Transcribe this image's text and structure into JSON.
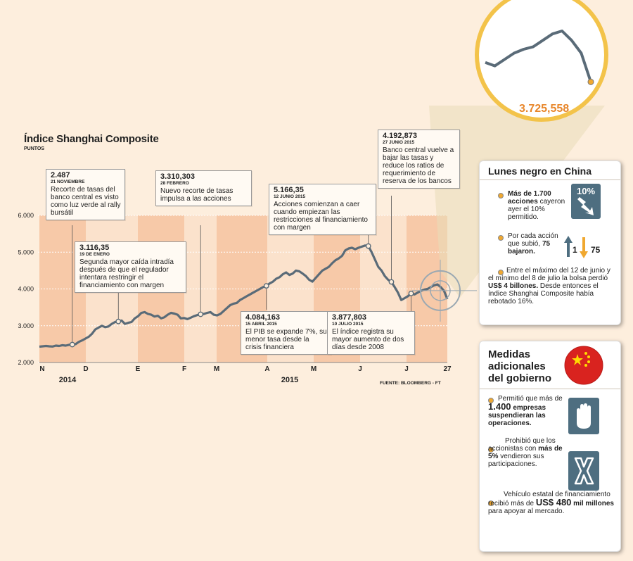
{
  "header": {
    "title": "Índice Shanghai Composite",
    "subtitle": "PUNTOS"
  },
  "chart_data": {
    "type": "line",
    "title": "Índice Shanghai Composite",
    "ylabel": "PUNTOS",
    "ylim": [
      2000,
      6000
    ],
    "yticks": [
      2000,
      3000,
      4000,
      5000,
      6000
    ],
    "ytick_labels": [
      "2.000",
      "3.000",
      "4.000",
      "5.000",
      "6.000"
    ],
    "month_labels": [
      "N",
      "D",
      "E",
      "F",
      "M",
      "A",
      "M",
      "J",
      "J",
      "27"
    ],
    "year_labels": [
      "2014",
      "2015"
    ],
    "series": [
      {
        "values": [
          2430,
          2440,
          2450,
          2440,
          2435,
          2460,
          2450,
          2470,
          2460,
          2480,
          2487,
          2500,
          2560,
          2600,
          2650,
          2700,
          2780,
          2900,
          2950,
          3000,
          2960,
          2980,
          3050,
          3100,
          3116,
          3140,
          3050,
          3080,
          3100,
          3200,
          3260,
          3350,
          3370,
          3320,
          3300,
          3250,
          3270,
          3200,
          3230,
          3300,
          3350,
          3330,
          3300,
          3200,
          3210,
          3180,
          3220,
          3260,
          3290,
          3310,
          3320,
          3350,
          3370,
          3300,
          3280,
          3320,
          3400,
          3480,
          3560,
          3600,
          3620,
          3700,
          3750,
          3800,
          3850,
          3900,
          3950,
          4000,
          4050,
          4084,
          4150,
          4200,
          4280,
          4320,
          4400,
          4450,
          4380,
          4420,
          4500,
          4480,
          4420,
          4350,
          4250,
          4200,
          4300,
          4400,
          4500,
          4550,
          4600,
          4700,
          4780,
          4830,
          4900,
          5050,
          5100,
          5120,
          5080,
          5120,
          5150,
          5180,
          5166,
          5000,
          4800,
          4600,
          4500,
          4350,
          4250,
          4192,
          4050,
          3900,
          3700,
          3750,
          3800,
          3877,
          3850,
          3900,
          3950,
          3980,
          4000,
          4050,
          4100,
          4123,
          4050,
          3950,
          3725
        ]
      }
    ],
    "annotations": [
      {
        "value": "2.487",
        "date": "21 NOVIEMBRE",
        "text": "Recorte de tasas del banco central es visto como luz verde al rally bursátil"
      },
      {
        "value": "3.116,35",
        "date": "19 DE ENERO",
        "text": "Segunda mayor caída intradía después de que el regulador intentara restringir el financiamiento con margen"
      },
      {
        "value": "3.310,303",
        "date": "28 FEBRERO",
        "text": "Nuevo recorte de tasas impulsa a las acciones"
      },
      {
        "value": "4.084,163",
        "date": "15 ABRIL 2015",
        "text": "El PIB se expande 7%, su menor tasa desde la crisis financiera"
      },
      {
        "value": "5.166,35",
        "date": "12 JUNIO 2015",
        "text": "Acciones comienzan a caer cuando empiezan las restricciones al financiamiento con margen"
      },
      {
        "value": "4.192,873",
        "date": "27 JUNIO 2015",
        "text": "Banco central vuelve a bajar las tasas y reduce los ratios de requerimiento de reserva de los bancos"
      },
      {
        "value": "3.877,803",
        "date": "10 JULIO 2015",
        "text": "El índice registra su mayor aumento de dos días desde 2008"
      }
    ],
    "zoom_value": "3.725,558",
    "source": "FUENTE: BLOOMBERG - FT"
  },
  "panel1": {
    "title": "Lunes negro en China",
    "item1": {
      "bold": "Más de 1.700 acciones",
      "rest": " cayeron ayer el 10% permitido."
    },
    "icon1_label": "10%",
    "item2": {
      "text": "Por cada acción que subió, ",
      "bold": "75 bajaron."
    },
    "up_count": "1",
    "down_count": "75",
    "item3": {
      "text1": "Entre el máximo del 12 de junio y el mínimo del 8 de julio la bolsa perdió ",
      "bold": "US$ 4 billones.",
      "text2": " Desde entonces el índice Shanghai Composite había rebotado 16%."
    }
  },
  "panel2": {
    "title": "Medidas adicionales del gobierno",
    "item1": {
      "pre": "Permitió que más de ",
      "big": "1.400",
      "rest": " empresas suspendieran las operaciones."
    },
    "item2": {
      "pre": "Prohibió que los accionistas con ",
      "bold": "más de 5%",
      "rest": " vendieron sus participaciones."
    },
    "item3": {
      "pre": "Vehículo estatal de financiamiento recibió más de ",
      "big": "US$ 480",
      "bold": " mil millones",
      "rest": " para apoyar al mercado."
    }
  },
  "colors": {
    "line": "#5a6b78",
    "band": "#f7c9a8",
    "accent": "#e8862a",
    "panel_border": "#cfc5b8"
  }
}
